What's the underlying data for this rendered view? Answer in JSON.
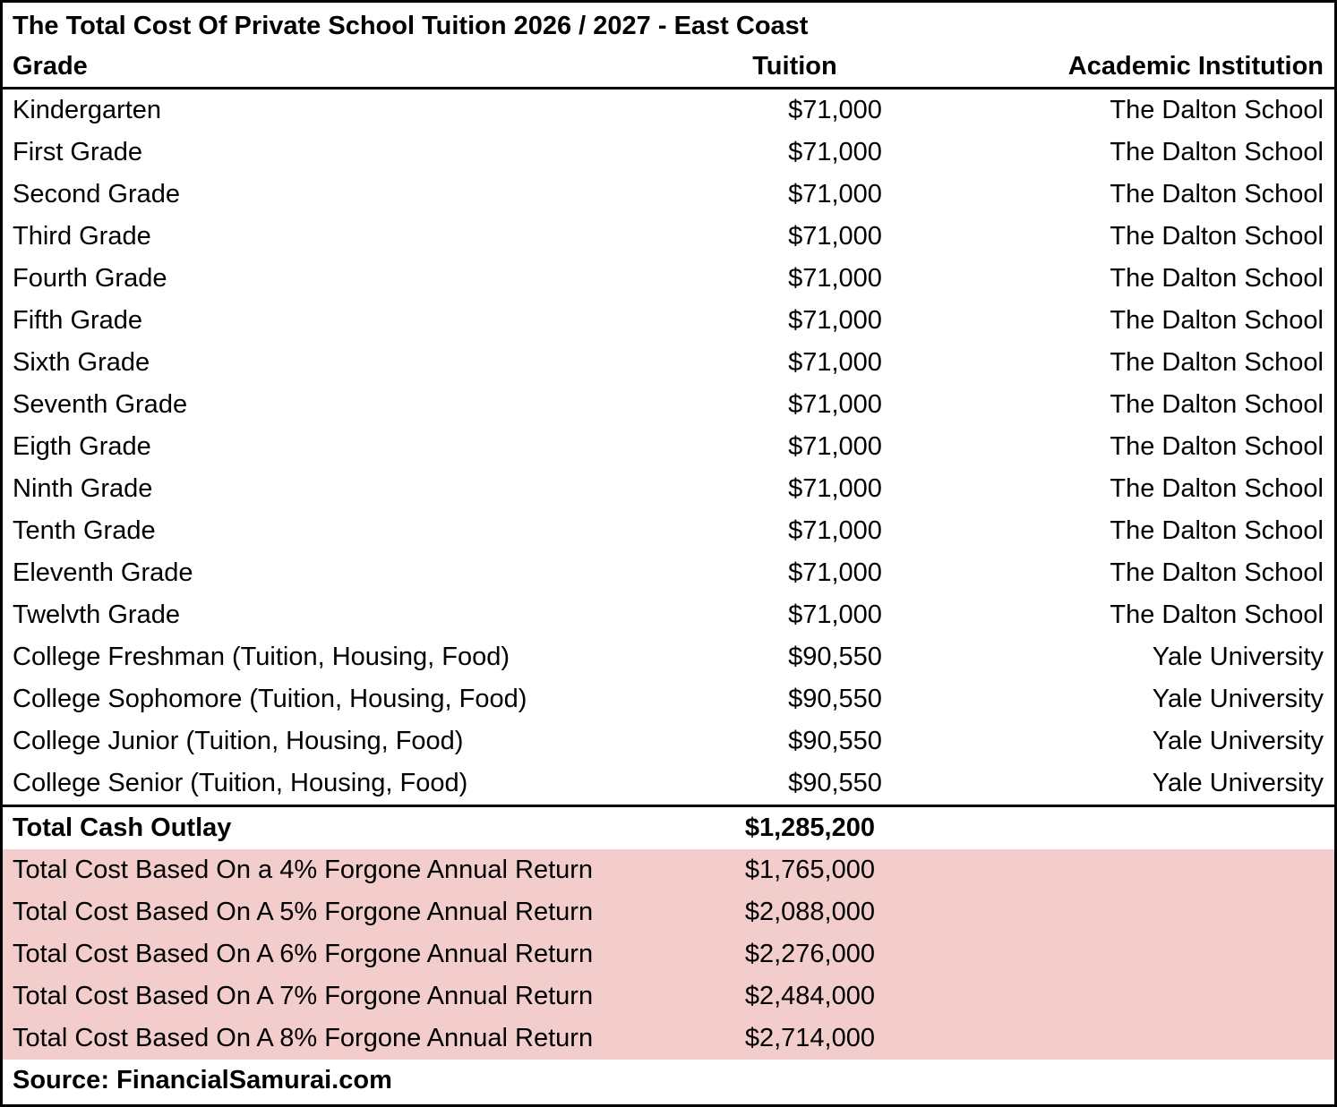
{
  "title": "The Total Cost Of Private School Tuition 2026 / 2027 - East Coast",
  "columns": {
    "grade": "Grade",
    "tuition": "Tuition",
    "institution": "Academic Institution"
  },
  "rows": [
    {
      "grade": "Kindergarten",
      "tuition": "$71,000",
      "institution": "The Dalton School"
    },
    {
      "grade": "First Grade",
      "tuition": "$71,000",
      "institution": "The Dalton School"
    },
    {
      "grade": "Second Grade",
      "tuition": "$71,000",
      "institution": "The Dalton School"
    },
    {
      "grade": "Third Grade",
      "tuition": "$71,000",
      "institution": "The Dalton School"
    },
    {
      "grade": "Fourth Grade",
      "tuition": "$71,000",
      "institution": "The Dalton School"
    },
    {
      "grade": "Fifth Grade",
      "tuition": "$71,000",
      "institution": "The Dalton School"
    },
    {
      "grade": "Sixth Grade",
      "tuition": "$71,000",
      "institution": "The Dalton School"
    },
    {
      "grade": "Seventh Grade",
      "tuition": "$71,000",
      "institution": "The Dalton School"
    },
    {
      "grade": "Eigth Grade",
      "tuition": "$71,000",
      "institution": "The Dalton School"
    },
    {
      "grade": "Ninth Grade",
      "tuition": "$71,000",
      "institution": "The Dalton School"
    },
    {
      "grade": "Tenth Grade",
      "tuition": "$71,000",
      "institution": "The Dalton School"
    },
    {
      "grade": "Eleventh Grade",
      "tuition": "$71,000",
      "institution": "The Dalton School"
    },
    {
      "grade": "Twelvth Grade",
      "tuition": "$71,000",
      "institution": "The Dalton School"
    },
    {
      "grade": "College Freshman (Tuition, Housing, Food)",
      "tuition": "$90,550",
      "institution": "Yale University"
    },
    {
      "grade": "College Sophomore (Tuition, Housing, Food)",
      "tuition": "$90,550",
      "institution": "Yale University"
    },
    {
      "grade": "College Junior (Tuition, Housing, Food)",
      "tuition": "$90,550",
      "institution": "Yale University"
    },
    {
      "grade": "College Senior (Tuition, Housing, Food)",
      "tuition": "$90,550",
      "institution": "Yale University"
    }
  ],
  "totals": {
    "cash_outlay": {
      "label": "Total Cash Outlay",
      "value": "$1,285,200"
    },
    "forgone": [
      {
        "label": "Total Cost Based On a 4% Forgone Annual Return",
        "value": "$1,765,000"
      },
      {
        "label": "Total Cost Based On A 5% Forgone Annual Return",
        "value": "$2,088,000"
      },
      {
        "label": "Total Cost Based On A 6% Forgone Annual Return",
        "value": "$2,276,000"
      },
      {
        "label": "Total Cost Based On A 7% Forgone Annual Return",
        "value": "$2,484,000"
      },
      {
        "label": "Total Cost Based On A 8% Forgone Annual Return",
        "value": "$2,714,000"
      }
    ]
  },
  "source": "Source: FinancialSamurai.com",
  "colors": {
    "highlight": "#f2cdcb",
    "border": "#000000",
    "text": "#000000",
    "background": "#ffffff"
  },
  "chart_data": {
    "type": "table",
    "title": "The Total Cost Of Private School Tuition 2026 / 2027 - East Coast",
    "columns": [
      "Grade",
      "Tuition",
      "Academic Institution"
    ],
    "rows": [
      [
        "Kindergarten",
        71000,
        "The Dalton School"
      ],
      [
        "First Grade",
        71000,
        "The Dalton School"
      ],
      [
        "Second Grade",
        71000,
        "The Dalton School"
      ],
      [
        "Third Grade",
        71000,
        "The Dalton School"
      ],
      [
        "Fourth Grade",
        71000,
        "The Dalton School"
      ],
      [
        "Fifth Grade",
        71000,
        "The Dalton School"
      ],
      [
        "Sixth Grade",
        71000,
        "The Dalton School"
      ],
      [
        "Seventh Grade",
        71000,
        "The Dalton School"
      ],
      [
        "Eigth Grade",
        71000,
        "The Dalton School"
      ],
      [
        "Ninth Grade",
        71000,
        "The Dalton School"
      ],
      [
        "Tenth Grade",
        71000,
        "The Dalton School"
      ],
      [
        "Eleventh Grade",
        71000,
        "The Dalton School"
      ],
      [
        "Twelvth Grade",
        71000,
        "The Dalton School"
      ],
      [
        "College Freshman (Tuition, Housing, Food)",
        90550,
        "Yale University"
      ],
      [
        "College Sophomore (Tuition, Housing, Food)",
        90550,
        "Yale University"
      ],
      [
        "College Junior (Tuition, Housing, Food)",
        90550,
        "Yale University"
      ],
      [
        "College Senior (Tuition, Housing, Food)",
        90550,
        "Yale University"
      ]
    ],
    "totals": {
      "total_cash_outlay": 1285200,
      "total_cost_forgone_return": {
        "4%": 1765000,
        "5%": 2088000,
        "6%": 2276000,
        "7%": 2484000,
        "8%": 2714000
      }
    },
    "source": "FinancialSamurai.com",
    "highlighted_rows": "forgone-return rows (pink background)"
  }
}
